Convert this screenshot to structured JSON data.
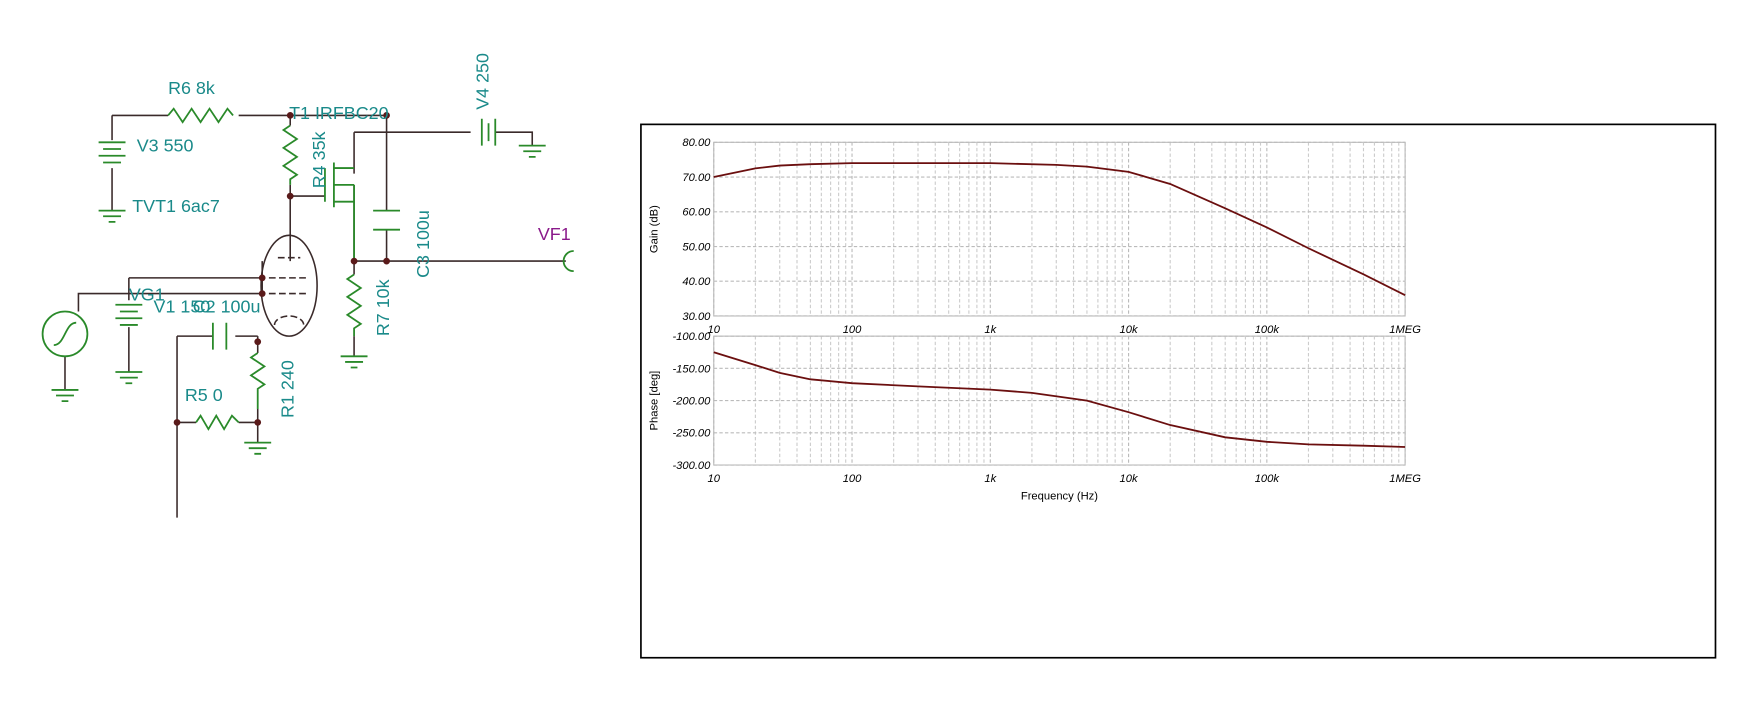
{
  "chart_data": [
    {
      "type": "line",
      "y_label": "Gain (dB)",
      "log_x": true,
      "grid": true,
      "x": [
        10,
        20,
        30,
        50,
        100,
        300,
        1000,
        3000,
        5000,
        10000,
        20000,
        50000,
        100000,
        200000,
        500000,
        1000000
      ],
      "series": [
        {
          "color": "#6b0f0f",
          "values": [
            70,
            72.5,
            73.3,
            73.7,
            74,
            74,
            74,
            73.5,
            73,
            71.5,
            68,
            61,
            55.5,
            49.5,
            42,
            36
          ]
        }
      ],
      "xlim": [
        10,
        1000000
      ],
      "xticks": [
        10,
        100,
        {
          "value": 1000,
          "label": "1k"
        },
        {
          "value": 10000,
          "label": "10k"
        },
        {
          "value": 100000,
          "label": "100k"
        },
        {
          "value": 1000000,
          "label": "1MEG"
        }
      ],
      "ylim": [
        30,
        80
      ],
      "yticks": [
        {
          "value": 30,
          "label": "30.00"
        },
        {
          "value": 40,
          "label": "40.00"
        },
        {
          "value": 50,
          "label": "50.00"
        },
        {
          "value": 60,
          "label": "60.00"
        },
        {
          "value": 70,
          "label": "70.00"
        },
        {
          "value": 80,
          "label": "80.00"
        }
      ]
    },
    {
      "type": "line",
      "y_label": "Phase [deg]",
      "x_label": "Frequency (Hz)",
      "log_x": true,
      "grid": true,
      "x": [
        10,
        20,
        30,
        50,
        100,
        300,
        1000,
        2000,
        5000,
        10000,
        20000,
        50000,
        100000,
        200000,
        500000,
        1000000
      ],
      "series": [
        {
          "color": "#6b0f0f",
          "values": [
            -125,
            -145,
            -157,
            -167,
            -173,
            -178,
            -183,
            -188,
            -200,
            -218,
            -238,
            -257,
            -264,
            -268,
            -270,
            -272
          ]
        }
      ],
      "xlim": [
        10,
        1000000
      ],
      "xticks": [
        10,
        100,
        {
          "value": 1000,
          "label": "1k"
        },
        {
          "value": 10000,
          "label": "10k"
        },
        {
          "value": 100000,
          "label": "100k"
        },
        {
          "value": 1000000,
          "label": "1MEG"
        }
      ],
      "ylim": [
        -300,
        -100
      ],
      "yticks": [
        {
          "value": -300,
          "label": "-300.00"
        },
        {
          "value": -250,
          "label": "-250.00"
        },
        {
          "value": -200,
          "label": "-200.00"
        },
        {
          "value": -150,
          "label": "-150.00"
        },
        {
          "value": -100,
          "label": "-100.00"
        }
      ]
    }
  ],
  "schematic": {
    "labels": [
      "R6 8k",
      "V3 550",
      "TVT1 6ac7",
      "T1 IRFBC20",
      "R4 35k",
      "V4 250",
      "C3 100u",
      "VF1",
      "R7 10k",
      "VG1",
      "V1 150",
      "C2 100u",
      "R1 240",
      "R5 0"
    ]
  }
}
